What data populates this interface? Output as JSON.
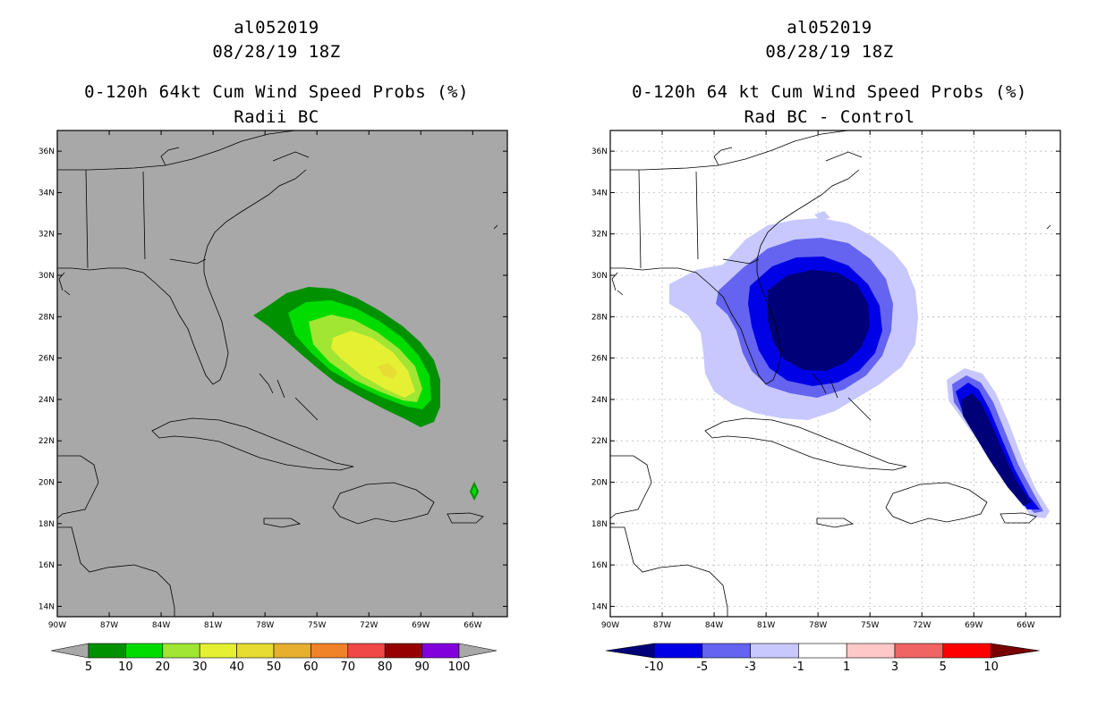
{
  "map_extent": {
    "lon_min": -90,
    "lon_max": -64,
    "lat_min": 13.5,
    "lat_max": 37
  },
  "latitude_ticks": [
    "14N",
    "16N",
    "18N",
    "20N",
    "22N",
    "24N",
    "26N",
    "28N",
    "30N",
    "32N",
    "34N",
    "36N"
  ],
  "longitude_ticks": [
    "90W",
    "87W",
    "84W",
    "81W",
    "78W",
    "75W",
    "72W",
    "69W",
    "66W"
  ],
  "panels": [
    {
      "id": "left",
      "title_line1": "al052019",
      "title_line2": "08/28/19 18Z",
      "title_line3": "0-120h 64kt Cum Wind Speed Probs (%)",
      "title_line4": "Radii BC",
      "background": "#a8a8a8",
      "grid": false,
      "colorbar": {
        "colors": [
          "#009100",
          "#00dc00",
          "#a0e632",
          "#e6f032",
          "#e6dc32",
          "#e6af2d",
          "#f08228",
          "#f04846",
          "#960000",
          "#8200dc"
        ],
        "end_left_color": "#a8a8a8",
        "end_right_color": "#a8a8a8",
        "labels": [
          "5",
          "10",
          "20",
          "30",
          "40",
          "50",
          "60",
          "70",
          "80",
          "90",
          "100"
        ]
      }
    },
    {
      "id": "right",
      "title_line1": "al052019",
      "title_line2": "08/28/19 18Z",
      "title_line3": "0-120h 64 kt Cum Wind Speed Probs (%)",
      "title_line4": "Rad BC - Control",
      "background": "#ffffff",
      "grid": true,
      "colorbar": {
        "colors": [
          "#0000e6",
          "#6464f0",
          "#c8c8ff",
          "#ffffff",
          "#ffc8c8",
          "#f06464",
          "#ff0000"
        ],
        "end_left_color": "#000078",
        "end_right_color": "#780000",
        "labels": [
          "-10",
          "-5",
          "-3",
          "-1",
          "1",
          "3",
          "5",
          "10"
        ]
      }
    }
  ]
}
